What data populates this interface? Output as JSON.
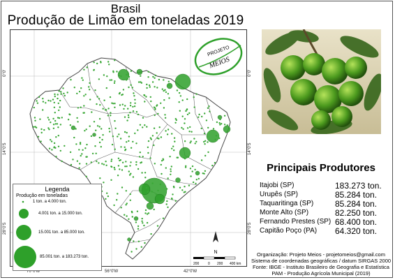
{
  "title": {
    "country": "Brasil",
    "main": "Produção de Limão em toneladas 2019"
  },
  "logo": {
    "top_text": "PROJETO",
    "bottom_text": "MEIOS"
  },
  "map": {
    "lat_labels": [
      "0°0'",
      "14°0'S",
      "28°0'S"
    ],
    "lat_labels_right": [
      "0°0'",
      "14°0'S",
      "28°0'S"
    ],
    "lon_labels": [
      "70°0'W",
      "56°0'W",
      "42°0'W"
    ],
    "north_label": "N",
    "scale_labels": [
      "200",
      "0",
      "200",
      "400 km"
    ],
    "symbol_color": "#2ea02a",
    "outline_color": "#555555"
  },
  "legend": {
    "title": "Legenda",
    "subtitle": "Produção em toneladas",
    "items": [
      {
        "label": "1 ton. a 4.000 ton."
      },
      {
        "label": "4.001 ton. a 15.000 ton."
      },
      {
        "label": "15.001 ton. a 85.000 ton."
      },
      {
        "label": "85.001 ton. a 183.273 ton."
      }
    ]
  },
  "producers": {
    "title": "Principais Produtores",
    "rows": [
      {
        "name": "Itajobi (SP)",
        "value": "183.273 ton."
      },
      {
        "name": "Urupês (SP)",
        "value": "85.284 ton."
      },
      {
        "name": "Taquaritinga (SP)",
        "value": "85.284 ton."
      },
      {
        "name": "Monte Alto (SP)",
        "value": "82.250 ton."
      },
      {
        "name": "Fernando Prestes (SP)",
        "value": "68.400 ton."
      },
      {
        "name": "Capitão Poço (PA)",
        "value": "64.320 ton."
      }
    ]
  },
  "footer": {
    "line1": "Organização: Projeto Meios - projetomeios@gmail.com",
    "line2": "Sistema de coordenadas geográficas / datum SIRGAS 2000",
    "line3": "Fonte: IBGE - Instituto Brasileiro de Geografia e Estatística",
    "line4": "PAM - Produção Agrícola Municipal (2019)"
  }
}
